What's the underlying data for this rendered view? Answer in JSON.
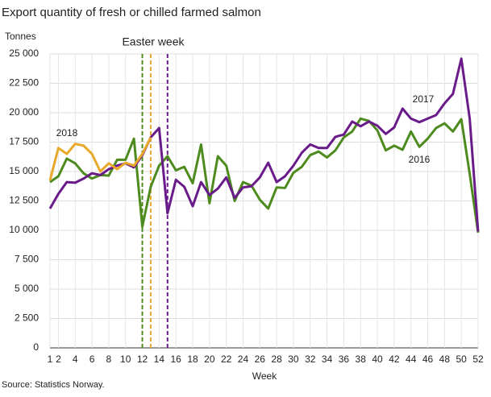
{
  "chart_data": {
    "type": "line",
    "title": "Export quantity of fresh or chilled farmed salmon",
    "y_label": "Tonnes",
    "x_label": "Week",
    "source": "Source: Statistics Norway.",
    "annotation": "Easter week",
    "x": [
      1,
      2,
      3,
      4,
      5,
      6,
      7,
      8,
      9,
      10,
      11,
      12,
      13,
      14,
      15,
      16,
      17,
      18,
      19,
      20,
      21,
      22,
      23,
      24,
      25,
      26,
      27,
      28,
      29,
      30,
      31,
      32,
      33,
      34,
      35,
      36,
      37,
      38,
      39,
      40,
      41,
      42,
      43,
      44,
      45,
      46,
      47,
      48,
      49,
      50,
      51,
      52
    ],
    "xlim": [
      1,
      52
    ],
    "xticks": [
      1,
      2,
      4,
      6,
      8,
      10,
      12,
      14,
      16,
      18,
      20,
      22,
      24,
      26,
      28,
      30,
      32,
      34,
      36,
      38,
      40,
      42,
      44,
      46,
      48,
      50,
      52
    ],
    "ylim": [
      0,
      25000
    ],
    "yticks": [
      0,
      {
        "value": 2500,
        "label": "2 500"
      },
      {
        "value": 5000,
        "label": "5 000"
      },
      {
        "value": 7500,
        "label": "7 500"
      },
      {
        "value": 10000,
        "label": "10 000"
      },
      {
        "value": 12500,
        "label": "12 500"
      },
      {
        "value": 15000,
        "label": "15 000"
      },
      {
        "value": 17500,
        "label": "17 500"
      },
      {
        "value": 20000,
        "label": "20 000"
      },
      {
        "value": 22500,
        "label": "22 500"
      },
      {
        "value": 25000,
        "label": "25 000"
      }
    ],
    "grid": true,
    "series": [
      {
        "name": "2016",
        "color": "#4e8b1e",
        "easter_week": 12,
        "values": [
          14100,
          14600,
          16100,
          15700,
          14850,
          14400,
          14700,
          14650,
          16000,
          16000,
          17800,
          10300,
          13700,
          15500,
          16300,
          15100,
          15400,
          14000,
          17300,
          12300,
          16300,
          15500,
          12500,
          14100,
          13800,
          12600,
          11850,
          13650,
          13600,
          14900,
          15400,
          16400,
          16700,
          16200,
          16800,
          17900,
          18400,
          19500,
          19300,
          18500,
          16800,
          17200,
          16850,
          18400,
          17100,
          17800,
          18700,
          19100,
          18400,
          19450,
          14800,
          9800
        ]
      },
      {
        "name": "2017",
        "color": "#6a1b8a",
        "easter_week": 15,
        "values": [
          11850,
          13100,
          14100,
          14050,
          14400,
          14850,
          14700,
          15200,
          15500,
          15700,
          15350,
          16400,
          17900,
          18700,
          11450,
          14300,
          13700,
          12050,
          14100,
          13000,
          13550,
          14500,
          12750,
          13650,
          13750,
          14500,
          15750,
          14100,
          14600,
          15500,
          16600,
          17300,
          17000,
          17000,
          17950,
          18150,
          19250,
          18850,
          19250,
          18900,
          18200,
          18750,
          20350,
          19500,
          19200,
          19500,
          19800,
          20800,
          21600,
          24600,
          19500,
          9900
        ]
      },
      {
        "name": "2018",
        "color": "#e8a82a",
        "easter_week": 13,
        "values": [
          14250,
          17000,
          16500,
          17350,
          17200,
          16500,
          15000,
          15700,
          15200,
          15750,
          15500,
          16500,
          17900,
          null,
          null,
          null,
          null,
          null,
          null,
          null,
          null,
          null,
          null,
          null,
          null,
          null,
          null,
          null,
          null,
          null,
          null,
          null,
          null,
          null,
          null,
          null,
          null,
          null,
          null,
          null,
          null,
          null,
          null,
          null,
          null,
          null,
          null,
          null,
          null,
          null,
          null,
          null
        ]
      }
    ]
  }
}
